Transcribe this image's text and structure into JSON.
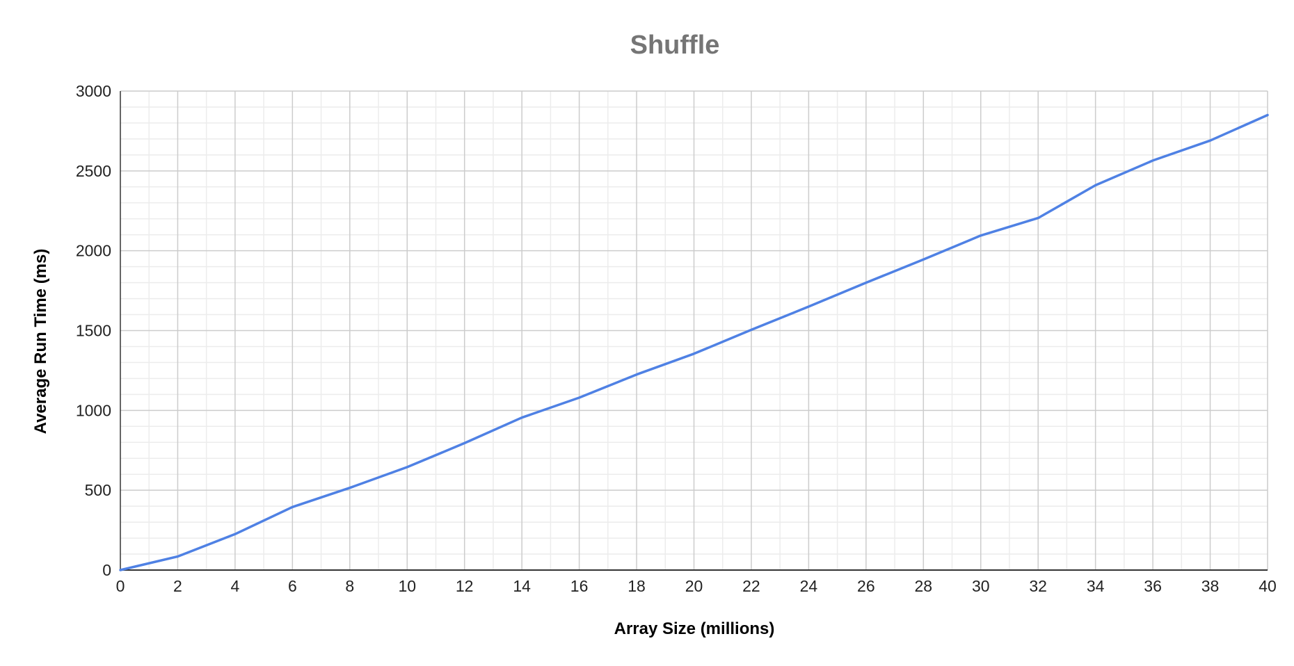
{
  "chart_data": {
    "type": "line",
    "title": "Shuffle",
    "xlabel": "Array Size (millions)",
    "ylabel": "Average Run Time (ms)",
    "xlim": [
      0,
      40
    ],
    "ylim": [
      0,
      3000
    ],
    "x_ticks": [
      0,
      2,
      4,
      6,
      8,
      10,
      12,
      14,
      16,
      18,
      20,
      22,
      24,
      26,
      28,
      30,
      32,
      34,
      36,
      38,
      40
    ],
    "y_ticks": [
      0,
      500,
      1000,
      1500,
      2000,
      2500,
      3000
    ],
    "x_minor_step": 1,
    "y_minor_step": 100,
    "grid": true,
    "legend": "none",
    "series": [
      {
        "color": "#4f81e4",
        "x": [
          0,
          2,
          4,
          6,
          8,
          10,
          12,
          14,
          16,
          18,
          20,
          22,
          24,
          26,
          28,
          30,
          32,
          34,
          36,
          38,
          40
        ],
        "y": [
          0,
          85,
          225,
          395,
          515,
          645,
          795,
          955,
          1080,
          1225,
          1355,
          1505,
          1650,
          1800,
          1945,
          2095,
          2205,
          2410,
          2565,
          2690,
          2850
        ]
      }
    ]
  }
}
